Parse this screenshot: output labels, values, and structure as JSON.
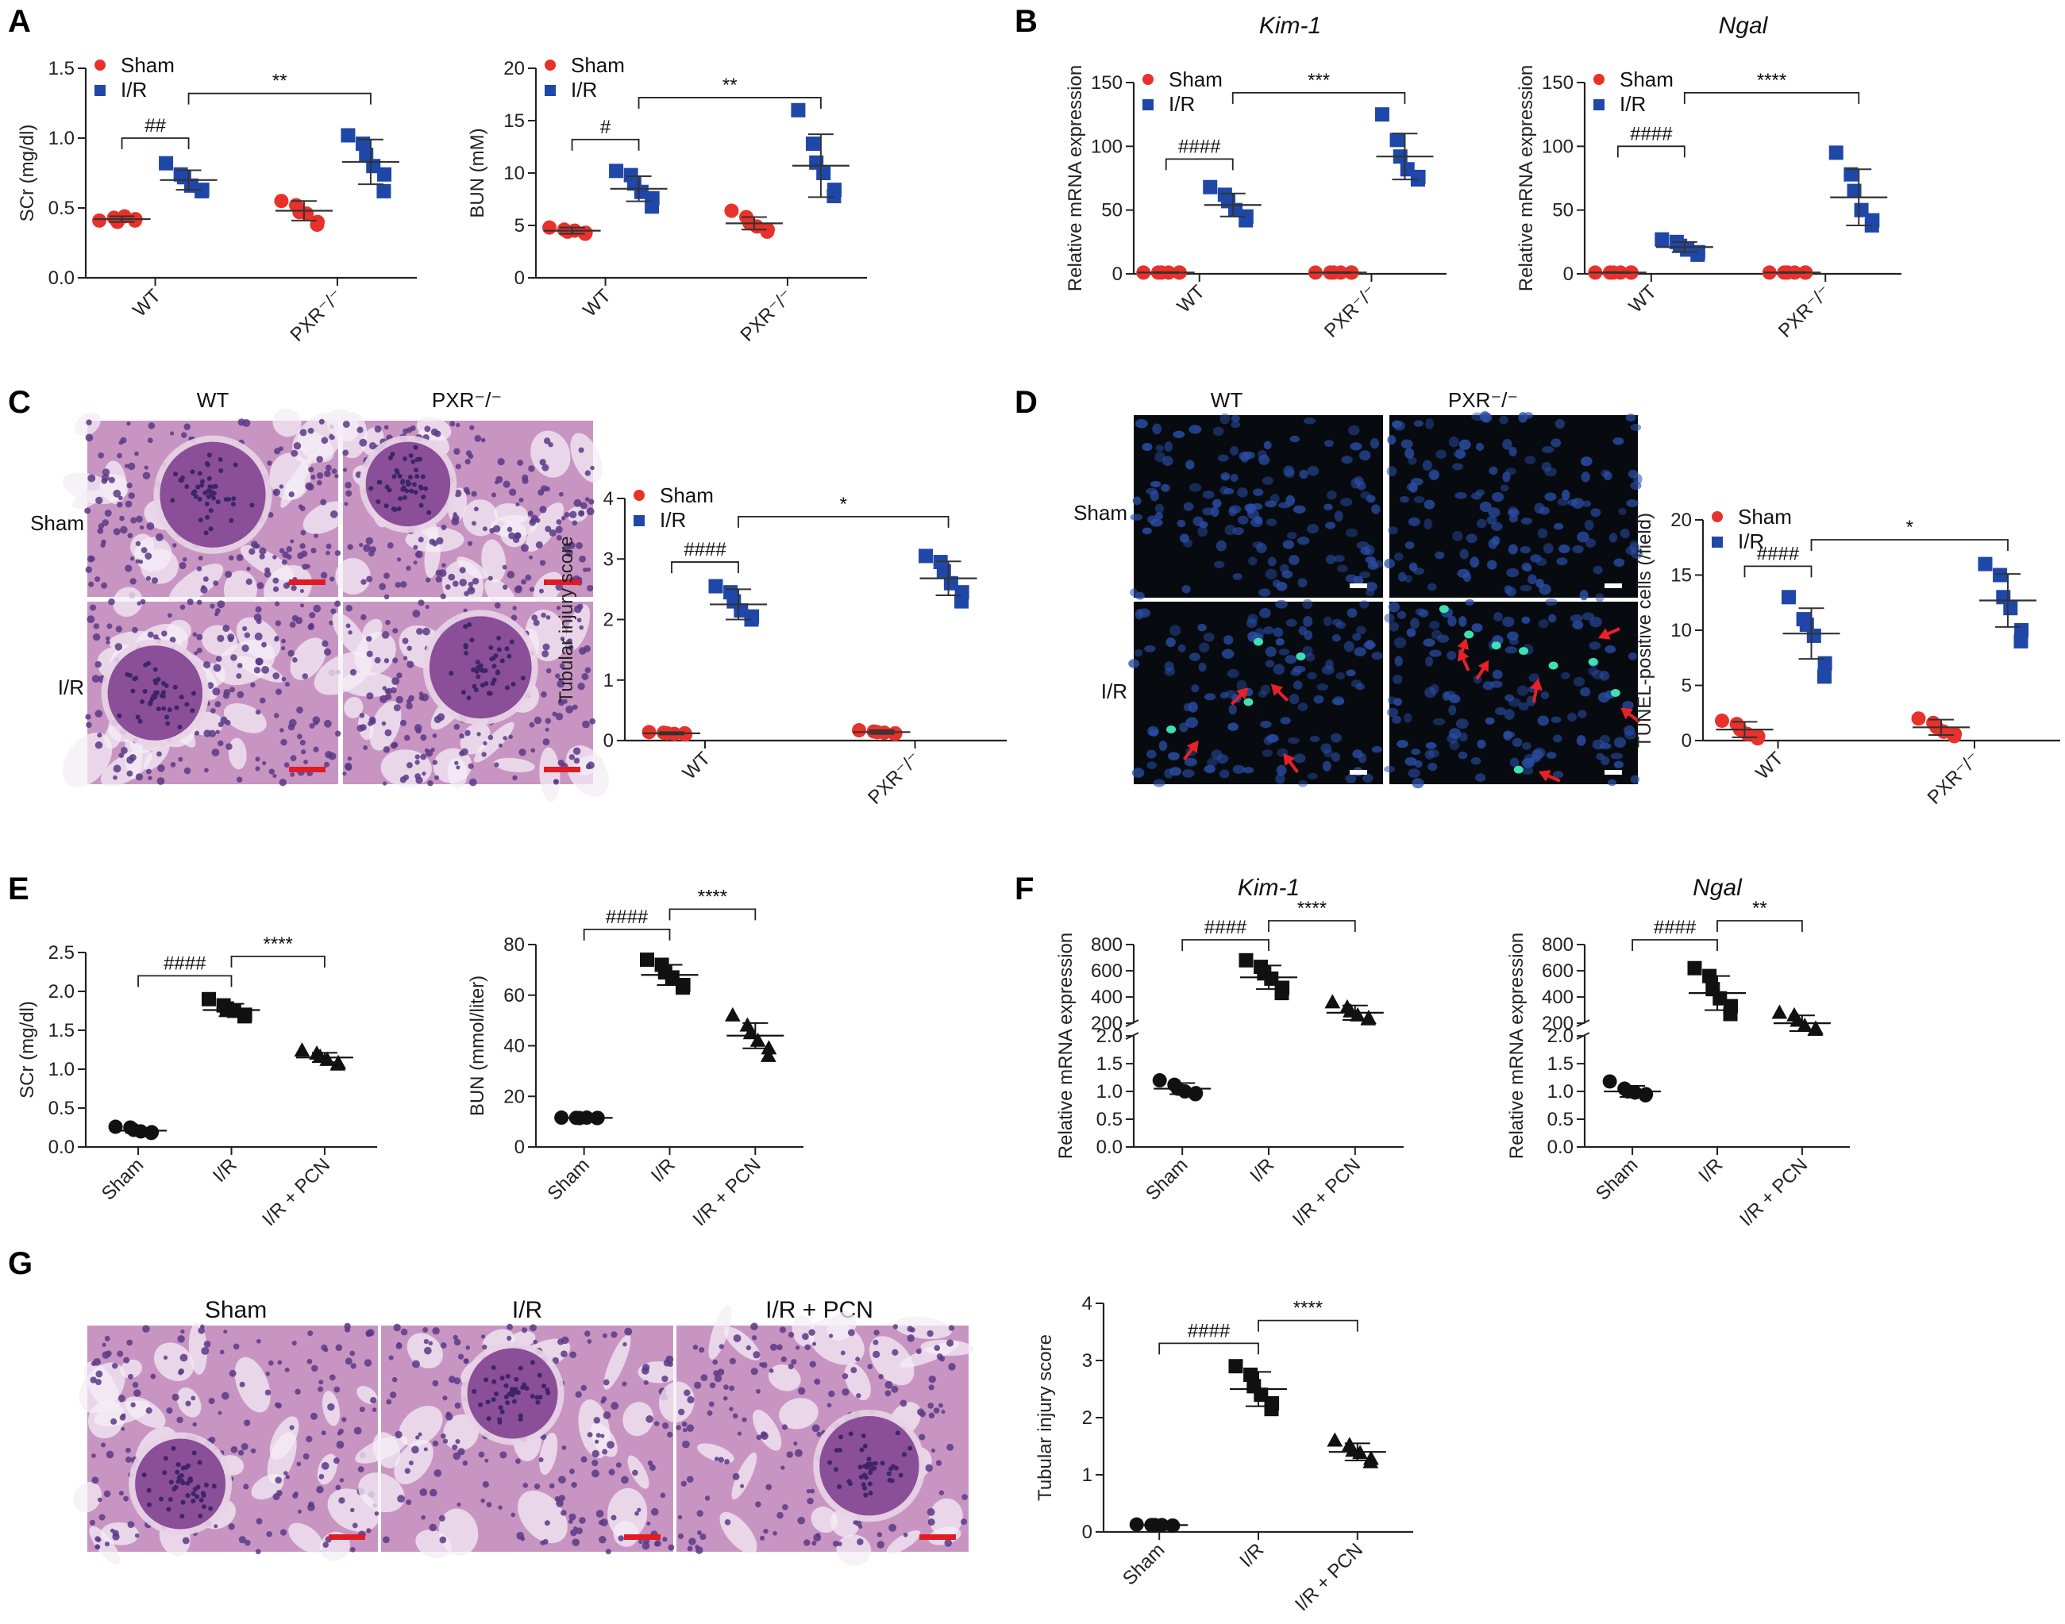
{
  "colors": {
    "sham": "#e8312a",
    "ir": "#1f47a8",
    "black": "#111111",
    "bracket": "#222222",
    "he_bg": "#c895c2",
    "he_dark": "#5a3a86",
    "he_light": "#e8d3e6",
    "he_lumen": "#f4eef5",
    "scale_bar": "#e11b22",
    "fl_bg": "#070b10",
    "fl_nuc": "#2b4fa8",
    "fl_pos": "#3fe0b4",
    "arrow": "#e8202a"
  },
  "panel_labels": [
    "A",
    "B",
    "C",
    "D",
    "E",
    "F",
    "G"
  ],
  "legend": {
    "sham": "Sham",
    "ir": "I/R"
  },
  "chart_data": [
    {
      "id": "A1",
      "panel": "A",
      "type": "scatter",
      "title": "",
      "ylabel": "SCr (mg/dl)",
      "ylim": [
        0,
        1.5
      ],
      "yticks": [
        "0.0",
        "0.5",
        "1.0",
        "1.5"
      ],
      "categories": [
        "WT",
        "PXR⁻/⁻"
      ],
      "marker_style": "two-group-color",
      "legend": true,
      "groups": [
        {
          "x": "WT",
          "series": "Sham",
          "mean": 0.42,
          "sd": 0.02,
          "points": [
            0.41,
            0.43,
            0.4,
            0.44,
            0.42,
            0.41
          ]
        },
        {
          "x": "WT",
          "series": "I/R",
          "mean": 0.7,
          "sd": 0.07,
          "points": [
            0.82,
            0.74,
            0.72,
            0.66,
            0.63,
            0.62
          ]
        },
        {
          "x": "PXR⁻/⁻",
          "series": "Sham",
          "mean": 0.48,
          "sd": 0.07,
          "points": [
            0.55,
            0.52,
            0.47,
            0.46,
            0.4,
            0.38
          ]
        },
        {
          "x": "PXR⁻/⁻",
          "series": "I/R",
          "mean": 0.83,
          "sd": 0.16,
          "points": [
            1.02,
            0.96,
            0.88,
            0.8,
            0.74,
            0.62
          ]
        }
      ],
      "annotations": [
        {
          "text": "##",
          "from": 0,
          "to": 1,
          "y": 1.0
        },
        {
          "text": "**",
          "from": 1,
          "to": 3,
          "y": 1.32
        }
      ]
    },
    {
      "id": "A2",
      "panel": "A",
      "type": "scatter",
      "title": "",
      "ylabel": "BUN (mM)",
      "ylim": [
        0,
        20
      ],
      "yticks": [
        "0",
        "5",
        "10",
        "15",
        "20"
      ],
      "categories": [
        "WT",
        "PXR⁻/⁻"
      ],
      "marker_style": "two-group-color",
      "legend": true,
      "groups": [
        {
          "x": "WT",
          "series": "Sham",
          "mean": 4.5,
          "sd": 0.3,
          "points": [
            4.8,
            4.6,
            4.4,
            4.5,
            4.3,
            4.2
          ]
        },
        {
          "x": "WT",
          "series": "I/R",
          "mean": 8.5,
          "sd": 1.2,
          "points": [
            10.2,
            9.8,
            9.0,
            8.2,
            7.6,
            6.8
          ]
        },
        {
          "x": "PXR⁻/⁻",
          "series": "Sham",
          "mean": 5.2,
          "sd": 0.6,
          "points": [
            6.4,
            5.8,
            5.2,
            4.9,
            4.6,
            4.4
          ]
        },
        {
          "x": "PXR⁻/⁻",
          "series": "I/R",
          "mean": 10.7,
          "sd": 3.0,
          "points": [
            16.0,
            12.8,
            11.0,
            10.0,
            8.4,
            7.8
          ]
        }
      ],
      "annotations": [
        {
          "text": "#",
          "from": 0,
          "to": 1,
          "y": 13.2
        },
        {
          "text": "**",
          "from": 1,
          "to": 3,
          "y": 17.2
        }
      ]
    },
    {
      "id": "B1",
      "panel": "B",
      "type": "scatter",
      "title": "Kim-1",
      "ylabel": "Relative mRNA expression",
      "ylim": [
        0,
        150
      ],
      "yticks": [
        "0",
        "50",
        "100",
        "150"
      ],
      "categories": [
        "WT",
        "PXR⁻/⁻"
      ],
      "marker_style": "two-group-color",
      "legend": true,
      "groups": [
        {
          "x": "WT",
          "series": "Sham",
          "mean": 1,
          "sd": 0.3,
          "points": [
            1,
            1,
            1,
            1,
            1,
            1
          ]
        },
        {
          "x": "WT",
          "series": "I/R",
          "mean": 54,
          "sd": 9,
          "points": [
            68,
            62,
            57,
            50,
            45,
            42
          ]
        },
        {
          "x": "PXR⁻/⁻",
          "series": "Sham",
          "mean": 1,
          "sd": 0.3,
          "points": [
            1,
            1,
            1,
            1,
            1,
            1
          ]
        },
        {
          "x": "PXR⁻/⁻",
          "series": "I/R",
          "mean": 92,
          "sd": 18,
          "points": [
            125,
            105,
            92,
            82,
            76,
            74
          ]
        }
      ],
      "annotations": [
        {
          "text": "####",
          "from": 0,
          "to": 1,
          "y": 90
        },
        {
          "text": "***",
          "from": 1,
          "to": 3,
          "y": 142
        }
      ]
    },
    {
      "id": "B2",
      "panel": "B",
      "type": "scatter",
      "title": "Ngal",
      "ylabel": "Relative mRNA expression",
      "ylim": [
        0,
        150
      ],
      "yticks": [
        "0",
        "50",
        "100",
        "150"
      ],
      "categories": [
        "WT",
        "PXR⁻/⁻"
      ],
      "marker_style": "two-group-color",
      "legend": true,
      "groups": [
        {
          "x": "WT",
          "series": "Sham",
          "mean": 1,
          "sd": 0.3,
          "points": [
            1,
            1,
            1,
            1,
            1,
            1
          ]
        },
        {
          "x": "WT",
          "series": "I/R",
          "mean": 21,
          "sd": 4,
          "points": [
            27,
            25,
            22,
            19,
            17,
            15
          ]
        },
        {
          "x": "PXR⁻/⁻",
          "series": "Sham",
          "mean": 1,
          "sd": 0.3,
          "points": [
            1,
            1,
            1,
            1,
            1,
            1
          ]
        },
        {
          "x": "PXR⁻/⁻",
          "series": "I/R",
          "mean": 60,
          "sd": 22,
          "points": [
            95,
            78,
            65,
            50,
            42,
            38
          ]
        }
      ],
      "annotations": [
        {
          "text": "####",
          "from": 0,
          "to": 1,
          "y": 100
        },
        {
          "text": "****",
          "from": 1,
          "to": 3,
          "y": 142
        }
      ]
    },
    {
      "id": "C1",
      "panel": "C",
      "type": "scatter",
      "title": "",
      "ylabel": "Tubular injury score",
      "ylim": [
        0,
        4
      ],
      "yticks": [
        "0",
        "1",
        "2",
        "3",
        "4"
      ],
      "categories": [
        "WT",
        "PXR⁻/⁻"
      ],
      "marker_style": "two-group-color",
      "legend": true,
      "groups": [
        {
          "x": "WT",
          "series": "Sham",
          "mean": 0.12,
          "sd": 0.02,
          "points": [
            0.14,
            0.13,
            0.12,
            0.11,
            0.1,
            0.12
          ]
        },
        {
          "x": "WT",
          "series": "I/R",
          "mean": 2.25,
          "sd": 0.25,
          "points": [
            2.55,
            2.45,
            2.3,
            2.15,
            2.05,
            2.0
          ]
        },
        {
          "x": "PXR⁻/⁻",
          "series": "Sham",
          "mean": 0.14,
          "sd": 0.03,
          "points": [
            0.17,
            0.15,
            0.14,
            0.13,
            0.12,
            0.11
          ]
        },
        {
          "x": "PXR⁻/⁻",
          "series": "I/R",
          "mean": 2.68,
          "sd": 0.28,
          "points": [
            3.05,
            2.95,
            2.8,
            2.6,
            2.45,
            2.3
          ]
        }
      ],
      "annotations": [
        {
          "text": "####",
          "from": 0,
          "to": 1,
          "y": 2.95
        },
        {
          "text": "*",
          "from": 1,
          "to": 3,
          "y": 3.7
        }
      ]
    },
    {
      "id": "D1",
      "panel": "D",
      "type": "scatter",
      "title": "",
      "ylabel": "TUNEL-positive cells (/field)",
      "ylim": [
        0,
        20
      ],
      "yticks": [
        "0",
        "5",
        "10",
        "15",
        "20"
      ],
      "categories": [
        "WT",
        "PXR⁻/⁻"
      ],
      "marker_style": "two-group-color",
      "legend": true,
      "groups": [
        {
          "x": "WT",
          "series": "Sham",
          "mean": 1.0,
          "sd": 0.7,
          "points": [
            1.8,
            1.5,
            1.0,
            0.6,
            0.4,
            0.2
          ]
        },
        {
          "x": "WT",
          "series": "I/R",
          "mean": 9.7,
          "sd": 2.3,
          "points": [
            13.0,
            11.0,
            10.5,
            9.5,
            7.0,
            5.8
          ]
        },
        {
          "x": "PXR⁻/⁻",
          "series": "Sham",
          "mean": 1.2,
          "sd": 0.7,
          "points": [
            2.0,
            1.6,
            1.2,
            0.8,
            0.6,
            0.4
          ]
        },
        {
          "x": "PXR⁻/⁻",
          "series": "I/R",
          "mean": 12.7,
          "sd": 2.4,
          "points": [
            16.0,
            15.0,
            13.0,
            12.0,
            10.0,
            9.0
          ]
        }
      ],
      "annotations": [
        {
          "text": "####",
          "from": 0,
          "to": 1,
          "y": 15.8
        },
        {
          "text": "*",
          "from": 1,
          "to": 3,
          "y": 18.2
        }
      ]
    },
    {
      "id": "E1",
      "panel": "E",
      "type": "scatter",
      "title": "",
      "ylabel": "SCr (mg/dl)",
      "ylim": [
        0,
        2.5
      ],
      "yticks": [
        "0.0",
        "0.5",
        "1.0",
        "1.5",
        "2.0",
        "2.5"
      ],
      "categories": [
        "Sham",
        "I/R",
        "I/R + PCN"
      ],
      "marker_style": "three-group-black",
      "legend": false,
      "groups": [
        {
          "x": "Sham",
          "marker": "circle",
          "mean": 0.21,
          "sd": 0.03,
          "points": [
            0.26,
            0.25,
            0.22,
            0.2,
            0.19,
            0.18
          ]
        },
        {
          "x": "I/R",
          "marker": "square",
          "mean": 1.76,
          "sd": 0.08,
          "points": [
            1.9,
            1.82,
            1.78,
            1.75,
            1.7,
            1.68
          ]
        },
        {
          "x": "I/R + PCN",
          "marker": "triangle",
          "mean": 1.15,
          "sd": 0.06,
          "points": [
            1.24,
            1.2,
            1.16,
            1.12,
            1.08,
            1.06
          ]
        }
      ],
      "annotations": [
        {
          "text": "####",
          "from": 0,
          "to": 1,
          "y": 2.2
        },
        {
          "text": "****",
          "from": 1,
          "to": 2,
          "y": 2.45
        }
      ]
    },
    {
      "id": "E2",
      "panel": "E",
      "type": "scatter",
      "title": "",
      "ylabel": "BUN (mmol/liter)",
      "ylim": [
        0,
        80
      ],
      "yticks": [
        "0",
        "20",
        "40",
        "60",
        "80"
      ],
      "categories": [
        "Sham",
        "I/R",
        "I/R + PCN"
      ],
      "marker_style": "three-group-black",
      "legend": false,
      "groups": [
        {
          "x": "Sham",
          "marker": "circle",
          "mean": 11.5,
          "sd": 0.3,
          "points": [
            11.6,
            11.5,
            11.4,
            11.6,
            11.5,
            11.4
          ]
        },
        {
          "x": "I/R",
          "marker": "square",
          "mean": 68,
          "sd": 4,
          "points": [
            74,
            72,
            69,
            67,
            64,
            63
          ]
        },
        {
          "x": "I/R + PCN",
          "marker": "triangle",
          "mean": 44,
          "sd": 5,
          "points": [
            52,
            48,
            45,
            42,
            39,
            36
          ]
        }
      ],
      "annotations": [
        {
          "text": "####",
          "from": 0,
          "to": 1,
          "y": 86
        },
        {
          "text": "****",
          "from": 1,
          "to": 2,
          "y": 94
        }
      ]
    },
    {
      "id": "F1",
      "panel": "F",
      "type": "scatter",
      "title": "Kim-1",
      "ylabel": "Relative mRNA expression",
      "broken_axis": true,
      "lower_ylim": [
        0,
        2.0
      ],
      "lower_yticks": [
        "0.0",
        "0.5",
        "1.0",
        "1.5",
        "2.0"
      ],
      "upper_ylim": [
        200,
        800
      ],
      "upper_yticks": [
        "200",
        "400",
        "600",
        "800"
      ],
      "categories": [
        "Sham",
        "I/R",
        "I/R + PCN"
      ],
      "marker_style": "three-group-black",
      "legend": false,
      "groups": [
        {
          "x": "Sham",
          "marker": "circle",
          "mean": 1.05,
          "sd": 0.1,
          "points": [
            1.2,
            1.12,
            1.05,
            1.0,
            0.97,
            0.95
          ]
        },
        {
          "x": "I/R",
          "marker": "square",
          "mean": 550,
          "sd": 90,
          "points": [
            680,
            630,
            580,
            540,
            470,
            430
          ]
        },
        {
          "x": "I/R + PCN",
          "marker": "triangle",
          "mean": 280,
          "sd": 55,
          "points": [
            360,
            320,
            290,
            260,
            240,
            230
          ]
        }
      ],
      "annotations": [
        {
          "text": "####",
          "from": 0,
          "to": 1,
          "y": 760
        },
        {
          "text": "****",
          "from": 1,
          "to": 2,
          "y": 850
        }
      ]
    },
    {
      "id": "F2",
      "panel": "F",
      "type": "scatter",
      "title": "Ngal",
      "ylabel": "Relative mRNA expression",
      "broken_axis": true,
      "lower_ylim": [
        0,
        2.0
      ],
      "lower_yticks": [
        "0.0",
        "0.5",
        "1.0",
        "1.5",
        "2.0"
      ],
      "upper_ylim": [
        200,
        800
      ],
      "upper_yticks": [
        "200",
        "400",
        "600",
        "800"
      ],
      "categories": [
        "Sham",
        "I/R",
        "I/R + PCN"
      ],
      "marker_style": "three-group-black",
      "legend": false,
      "groups": [
        {
          "x": "Sham",
          "marker": "circle",
          "mean": 1.0,
          "sd": 0.1,
          "points": [
            1.18,
            1.05,
            1.0,
            0.98,
            0.95,
            0.93
          ]
        },
        {
          "x": "I/R",
          "marker": "square",
          "mean": 430,
          "sd": 130,
          "points": [
            620,
            560,
            460,
            390,
            330,
            270
          ]
        },
        {
          "x": "I/R + PCN",
          "marker": "triangle",
          "mean": 200,
          "sd": 60,
          "points": [
            280,
            260,
            220,
            180,
            160,
            150
          ]
        }
      ],
      "annotations": [
        {
          "text": "####",
          "from": 0,
          "to": 1,
          "y": 760
        },
        {
          "text": "**",
          "from": 1,
          "to": 2,
          "y": 850
        }
      ]
    },
    {
      "id": "G1",
      "panel": "G",
      "type": "scatter",
      "title": "",
      "ylabel": "Tubular injury score",
      "ylim": [
        0,
        4
      ],
      "yticks": [
        "0",
        "1",
        "2",
        "3",
        "4"
      ],
      "categories": [
        "Sham",
        "I/R",
        "I/R + PCN"
      ],
      "marker_style": "three-group-black",
      "legend": false,
      "groups": [
        {
          "x": "Sham",
          "marker": "circle",
          "mean": 0.12,
          "sd": 0.02,
          "points": [
            0.13,
            0.12,
            0.12,
            0.12,
            0.11,
            0.11
          ]
        },
        {
          "x": "I/R",
          "marker": "square",
          "mean": 2.5,
          "sd": 0.3,
          "points": [
            2.9,
            2.75,
            2.55,
            2.4,
            2.25,
            2.15
          ]
        },
        {
          "x": "I/R + PCN",
          "marker": "triangle",
          "mean": 1.4,
          "sd": 0.15,
          "points": [
            1.6,
            1.52,
            1.42,
            1.38,
            1.28,
            1.22
          ]
        }
      ],
      "annotations": [
        {
          "text": "####",
          "from": 0,
          "to": 1,
          "y": 3.3
        },
        {
          "text": "****",
          "from": 1,
          "to": 2,
          "y": 3.7
        }
      ]
    }
  ],
  "images": {
    "C": {
      "col_labels": [
        "WT",
        "PXR⁻/⁻"
      ],
      "row_labels": [
        "Sham",
        "I/R"
      ]
    },
    "D": {
      "col_labels": [
        "WT",
        "PXR⁻/⁻"
      ],
      "row_labels": [
        "Sham",
        "I/R"
      ]
    },
    "G": {
      "col_labels": [
        "Sham",
        "I/R",
        "I/R + PCN"
      ]
    }
  }
}
